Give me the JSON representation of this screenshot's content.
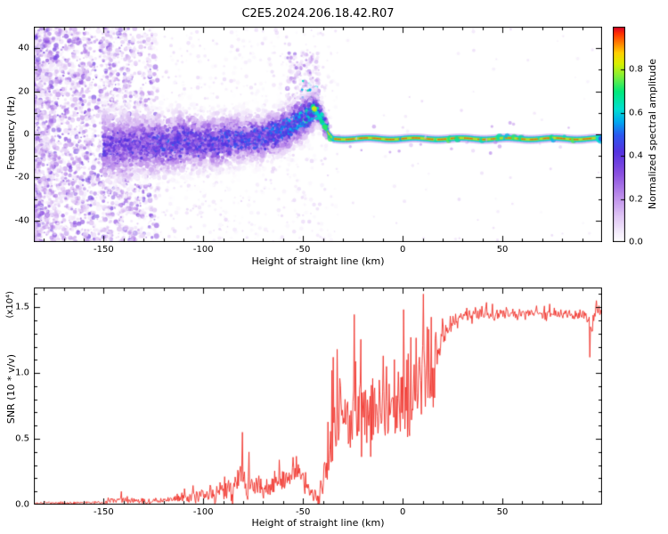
{
  "title": "C2E5.2024.206.18.42.R07",
  "colors": {
    "line": "#f03028",
    "frame": "#000000"
  },
  "colormap": {
    "stops": [
      [
        0.0,
        "#ffffff"
      ],
      [
        0.04,
        "#f6effc"
      ],
      [
        0.12,
        "#e0c6f5"
      ],
      [
        0.22,
        "#bb8aea"
      ],
      [
        0.32,
        "#8a4fe0"
      ],
      [
        0.42,
        "#5532e0"
      ],
      [
        0.5,
        "#2b59f0"
      ],
      [
        0.56,
        "#00a8f0"
      ],
      [
        0.62,
        "#00e0d0"
      ],
      [
        0.7,
        "#00e87a"
      ],
      [
        0.77,
        "#7df03a"
      ],
      [
        0.83,
        "#d8f000"
      ],
      [
        0.88,
        "#ffd000"
      ],
      [
        0.93,
        "#ff7800"
      ],
      [
        0.97,
        "#ff3000"
      ],
      [
        1.0,
        "#d8002a"
      ]
    ]
  },
  "chart_data": [
    {
      "type": "heatmap",
      "title": "C2E5.2024.206.18.42.R07",
      "xlabel": "Height of straight line (km)",
      "ylabel": "Frequency (Hz)",
      "xlim": [
        -185,
        100
      ],
      "ylim": [
        -50,
        50
      ],
      "xticks": [
        -150,
        -100,
        -50,
        0,
        50
      ],
      "yticks": [
        -40,
        -20,
        0,
        20,
        40
      ],
      "colorbar": {
        "label": "Normalized spectral amplitude",
        "ticks": [
          0.0,
          0.2,
          0.4,
          0.6,
          0.8
        ],
        "lim": [
          0,
          1
        ]
      },
      "ridge": {
        "x": [
          -150,
          -140,
          -130,
          -120,
          -110,
          -100,
          -90,
          -80,
          -70,
          -62,
          -56,
          -50,
          -46,
          -43,
          -41,
          -39,
          -37,
          -35,
          -30,
          -20,
          0,
          50,
          100
        ],
        "freq": [
          -5,
          -6,
          -4,
          -5,
          -3,
          -4,
          -3,
          -2,
          -1,
          1,
          4,
          7,
          10,
          12,
          9,
          4,
          0,
          -2,
          -2,
          -2,
          -2,
          -2,
          -2
        ],
        "spread": [
          9,
          9,
          8,
          8,
          8,
          7,
          7,
          6,
          6,
          6,
          6,
          5.5,
          5,
          4,
          3,
          2.5,
          2,
          1.5,
          1.2,
          1.2,
          1.2,
          1.2,
          1.2
        ],
        "intensity": [
          0.5,
          0.5,
          0.5,
          0.55,
          0.55,
          0.55,
          0.6,
          0.6,
          0.6,
          0.65,
          0.7,
          0.75,
          0.8,
          0.82,
          0.8,
          0.85,
          0.9,
          0.95,
          0.97,
          0.97,
          0.97,
          0.97,
          0.97
        ]
      },
      "noise_region": {
        "x_range": [
          -185,
          -123
        ],
        "max_amplitude": 0.4
      }
    },
    {
      "type": "line",
      "xlabel": "Height of straight line (km)",
      "ylabel": "SNR (10 * v/v)",
      "scale_label": "(x10⁴)",
      "xlim": [
        -185,
        100
      ],
      "ylim": [
        0,
        1.65
      ],
      "xticks": [
        -150,
        -100,
        -50,
        0,
        50
      ],
      "yticks": [
        0.0,
        0.5,
        1.0,
        1.5
      ],
      "envelope": {
        "x": [
          -185,
          -170,
          -160,
          -150,
          -140,
          -130,
          -120,
          -110,
          -105,
          -100,
          -95,
          -90,
          -85,
          -82,
          -80,
          -77,
          -74,
          -70,
          -66,
          -62,
          -58,
          -55,
          -52,
          -50,
          -47,
          -44,
          -42,
          -40,
          -38,
          -36,
          -34,
          -32,
          -30,
          -28,
          -26,
          -24,
          -22,
          -20,
          -18,
          -16,
          -14,
          -12,
          -10,
          -8,
          -6,
          -4,
          -2,
          0,
          2,
          4,
          6,
          8,
          10,
          12,
          14,
          15,
          16,
          18,
          20,
          22,
          24,
          26,
          30,
          35,
          40,
          45,
          50,
          55,
          60,
          65,
          70,
          75,
          80,
          85,
          90,
          93,
          95,
          97,
          100
        ],
        "y": [
          0.01,
          0.012,
          0.015,
          0.02,
          0.035,
          0.03,
          0.035,
          0.05,
          0.06,
          0.08,
          0.09,
          0.1,
          0.13,
          0.2,
          0.16,
          0.12,
          0.14,
          0.12,
          0.14,
          0.16,
          0.2,
          0.24,
          0.26,
          0.2,
          0.1,
          0.07,
          0.06,
          0.12,
          0.35,
          0.55,
          0.7,
          0.72,
          0.7,
          0.72,
          0.65,
          0.68,
          0.72,
          0.75,
          0.7,
          0.72,
          0.68,
          0.75,
          0.78,
          0.72,
          0.78,
          0.72,
          0.78,
          0.82,
          0.78,
          0.85,
          0.8,
          0.9,
          1.0,
          1.05,
          0.95,
          0.8,
          1.05,
          1.2,
          1.3,
          1.35,
          1.38,
          1.4,
          1.42,
          1.44,
          1.45,
          1.44,
          1.46,
          1.44,
          1.45,
          1.46,
          1.44,
          1.45,
          1.46,
          1.44,
          1.45,
          1.4,
          1.35,
          1.5,
          1.45
        ]
      },
      "noise_amp": {
        "x": [
          -185,
          -160,
          -150,
          -140,
          -130,
          -120,
          -110,
          -100,
          -95,
          -90,
          -85,
          -80,
          -75,
          -70,
          -65,
          -60,
          -55,
          -50,
          -46,
          -42,
          -40,
          -38,
          -36,
          -34,
          -30,
          -25,
          -20,
          -15,
          -10,
          -5,
          0,
          5,
          10,
          13,
          15,
          17,
          20,
          23,
          26,
          30,
          40,
          60,
          80,
          100
        ],
        "a": [
          0.006,
          0.008,
          0.012,
          0.02,
          0.02,
          0.02,
          0.025,
          0.04,
          0.05,
          0.06,
          0.09,
          0.12,
          0.08,
          0.07,
          0.07,
          0.07,
          0.06,
          0.06,
          0.04,
          0.05,
          0.12,
          0.25,
          0.3,
          0.3,
          0.28,
          0.25,
          0.22,
          0.22,
          0.22,
          0.22,
          0.25,
          0.25,
          0.3,
          0.35,
          0.3,
          0.2,
          0.12,
          0.08,
          0.05,
          0.04,
          0.035,
          0.03,
          0.03,
          0.04
        ]
      },
      "spikes": [
        {
          "x": -80.5,
          "y": 0.55
        },
        {
          "x": -77,
          "y": 0.4
        },
        {
          "x": -62,
          "y": 0.34
        },
        {
          "x": -55,
          "y": 0.36
        },
        {
          "x": -35,
          "y": 1.12
        },
        {
          "x": -33,
          "y": 1.18
        },
        {
          "x": -8,
          "y": 1.05
        },
        {
          "x": 2,
          "y": 1.1
        },
        {
          "x": 10.5,
          "y": 1.6
        },
        {
          "x": 12.5,
          "y": 1.35
        },
        {
          "x": 94,
          "y": 1.12
        },
        {
          "x": 97,
          "y": 1.55
        }
      ]
    }
  ]
}
